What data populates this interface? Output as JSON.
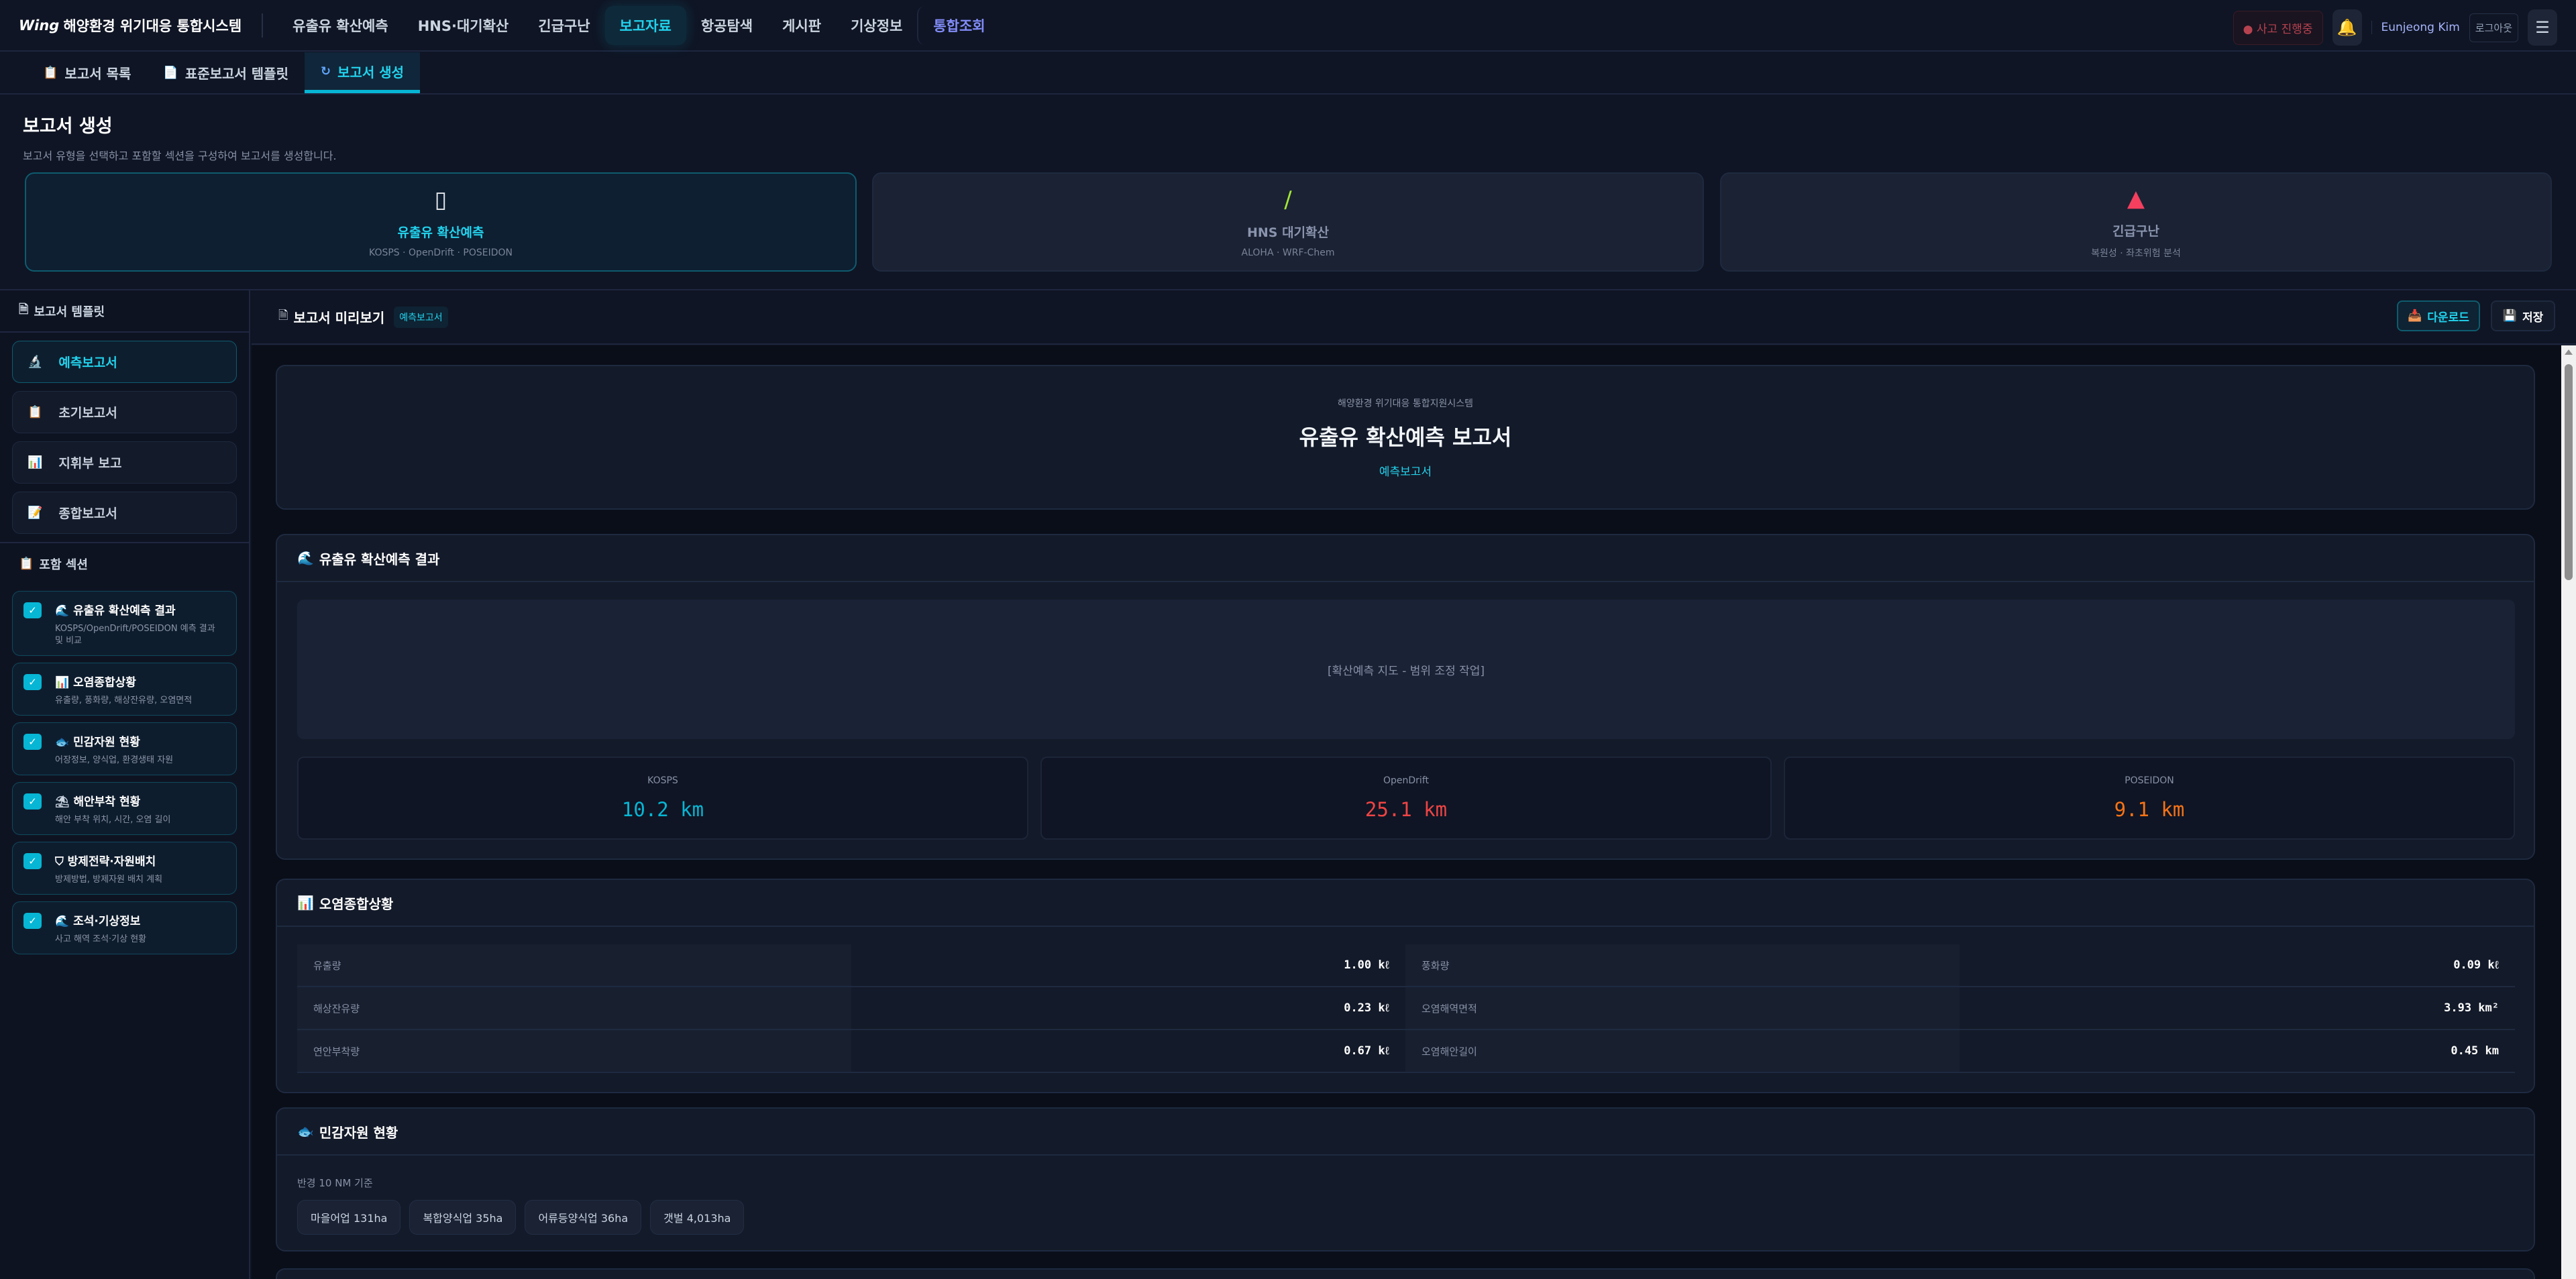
{
  "app": {
    "logo_mark": "Wing",
    "title": "해양환경 위기대응 통합시스템"
  },
  "nav": {
    "items": [
      "유출유 확산예측",
      "HNS·대기확산",
      "긴급구난",
      "보고자료",
      "항공탐색",
      "게시판",
      "기상정보"
    ],
    "special": "통합조회",
    "active": "보고자료"
  },
  "header": {
    "incident": "● 사고 진행중",
    "user": "Eunjeong Kim",
    "logout": "로그아웃"
  },
  "subtabs": [
    {
      "label": "보고서 목록",
      "icon": "clipboard-icon"
    },
    {
      "label": "표준보고서 템플릿",
      "icon": "document-icon"
    },
    {
      "label": "보고서 생성",
      "icon": "refresh-icon",
      "active": true
    }
  ],
  "page": {
    "title": "보고서 생성",
    "subtitle": "보고서 유형을 선택하고 포함할 섹션을 구성하여 보고서를 생성합니다."
  },
  "report_types": [
    {
      "name": "유출유 확산예측",
      "desc": "KOSPS · OpenDrift · POSEIDON",
      "icon": "oil-drum-icon",
      "active": true
    },
    {
      "name": "HNS 대기확산",
      "desc": "ALOHA · WRF-Chem",
      "icon": "test-tube-icon"
    },
    {
      "name": "긴급구난",
      "desc": "복원성 · 좌초위험 분석",
      "icon": "siren-icon"
    }
  ],
  "sidebar": {
    "templates_title": "보고서 템플릿",
    "templates": [
      {
        "label": "예측보고서",
        "icon": "microscope-icon",
        "active": true
      },
      {
        "label": "초기보고서",
        "icon": "clipboard-icon"
      },
      {
        "label": "지휘부 보고",
        "icon": "bar-chart-icon"
      },
      {
        "label": "종합보고서",
        "icon": "document-icon"
      }
    ],
    "sections_title": "포함 섹션",
    "sections": [
      {
        "title": "유출유 확산예측 결과",
        "desc": "KOSPS/OpenDrift/POSEIDON 예측 결과 및 비교",
        "icon": "wave-icon",
        "checked": true
      },
      {
        "title": "오염종합상황",
        "desc": "유출량, 풍화량, 해상잔유량, 오염면적",
        "icon": "bar-chart-icon",
        "checked": true
      },
      {
        "title": "민감자원 현황",
        "desc": "어장정보, 양식업, 환경생태 자원",
        "icon": "fish-icon",
        "checked": true
      },
      {
        "title": "해안부착 현황",
        "desc": "해안 부착 위치, 시간, 오염 길이",
        "icon": "beach-icon",
        "checked": true
      },
      {
        "title": "방제전략·자원배치",
        "desc": "방제방법, 방제자원 배치 계획",
        "icon": "shield-icon",
        "checked": true
      },
      {
        "title": "조석·기상정보",
        "desc": "사고 해역 조석·기상 현황",
        "icon": "wave-icon",
        "checked": true
      }
    ]
  },
  "preview": {
    "title": "보고서 미리보기",
    "badge": "예측보고서",
    "download": "다운로드",
    "save": "저장",
    "cover": {
      "org": "해양환경 위기대응 통합지원시스템",
      "title": "유출유 확산예측 보고서",
      "type": "예측보고서"
    },
    "spread": {
      "title": "유출유 확산예측 결과",
      "map_placeholder": "[확산예측 지도 - 범위 조정 작업]",
      "models": [
        {
          "name": "KOSPS",
          "value": "10.2 km",
          "color": "#06b6d4"
        },
        {
          "name": "OpenDrift",
          "value": "25.1 km",
          "color": "#ef4444"
        },
        {
          "name": "POSEIDON",
          "value": "9.1 km",
          "color": "#f97316"
        }
      ]
    },
    "pollution": {
      "title": "오염종합상황",
      "rows": [
        {
          "l1": "유출량",
          "v1": "1.00 kℓ",
          "l2": "풍화량",
          "v2": "0.09 kℓ"
        },
        {
          "l1": "해상잔유량",
          "v1": "0.23 kℓ",
          "l2": "오염해역면적",
          "v2": "3.93 km²"
        },
        {
          "l1": "연안부착량",
          "v1": "0.67 kℓ",
          "l2": "오염해안길이",
          "v2": "0.45 km"
        }
      ]
    },
    "sensitive": {
      "title": "민감자원 현황",
      "radius": "반경 10 NM 기준",
      "chips": [
        "마을어업 131ha",
        "복합양식업 35ha",
        "어류등양식업 36ha",
        "갯벌 4,013ha"
      ]
    }
  }
}
